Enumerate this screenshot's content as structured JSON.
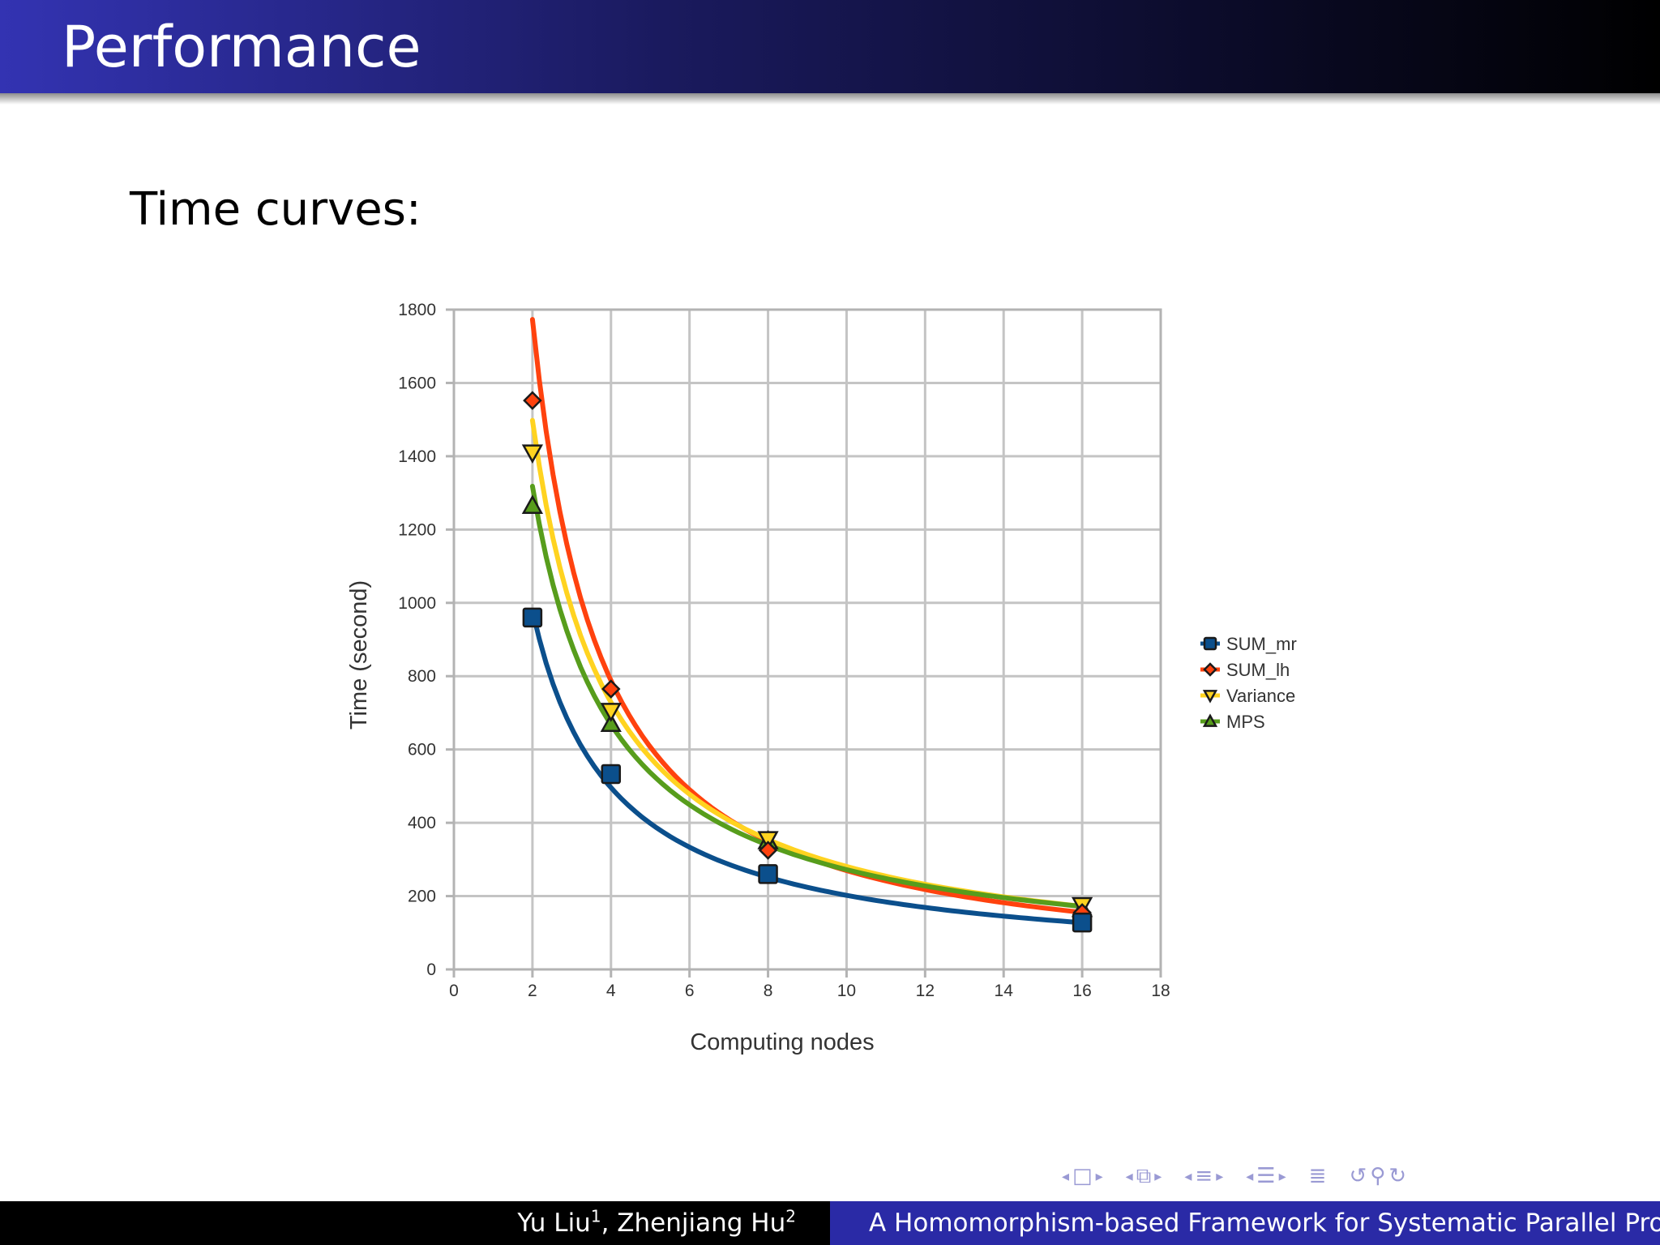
{
  "slide": {
    "title": "Performance",
    "subtitle": "Time curves:"
  },
  "footer": {
    "author1": "Yu Liu",
    "author1_sup": "1",
    "separator": ", ",
    "author2": "Zhenjiang Hu",
    "author2_sup": "2",
    "talk_title": "A Homomorphism-based Framework for Systematic Parallel Programming with MapReduce"
  },
  "navigation": {
    "icons": [
      "left-arrow-icon",
      "frame-icon",
      "right-arrow-icon",
      "left-arrow-icon",
      "subsection-icon",
      "right-arrow-icon",
      "left-arrow-icon",
      "section-icon",
      "right-arrow-icon",
      "left-arrow-icon",
      "document-icon",
      "right-arrow-icon",
      "align-icon",
      "back-icon",
      "zoom-icon",
      "forward-icon"
    ],
    "color": "#9a9ad4"
  },
  "colors": {
    "title_bar_start": "#3333b2",
    "title_bar_end": "#000000",
    "footer_left": "#000000",
    "footer_right": "#2a2aa6"
  },
  "chart_data": {
    "type": "scatter",
    "title": "",
    "xlabel": "Computing nodes",
    "ylabel": "Time (second)",
    "xlim": [
      0,
      18
    ],
    "ylim": [
      0,
      1800
    ],
    "xticks": [
      0,
      2,
      4,
      6,
      8,
      10,
      12,
      14,
      16,
      18
    ],
    "yticks": [
      0,
      200,
      400,
      600,
      800,
      1000,
      1200,
      1400,
      1600,
      1800
    ],
    "grid": true,
    "legend_position": "right",
    "x": [
      2,
      4,
      8,
      16
    ],
    "series": [
      {
        "name": "SUM_mr",
        "values": [
          960,
          533,
          260,
          128
        ],
        "color": "#0b4f8c",
        "marker": "square",
        "trend": "power"
      },
      {
        "name": "SUM_lh",
        "values": [
          1552,
          765,
          325,
          155
        ],
        "color": "#ff420e",
        "marker": "diamond",
        "trend": "power"
      },
      {
        "name": "Variance",
        "values": [
          1410,
          705,
          355,
          175
        ],
        "color": "#ffd320",
        "marker": "triangle-down",
        "trend": "power"
      },
      {
        "name": "MPS",
        "values": [
          1265,
          670,
          350,
          165
        ],
        "color": "#579d1c",
        "marker": "triangle-up",
        "trend": "power"
      }
    ],
    "trend_lines": [
      {
        "series": "SUM_mr",
        "a": 1930,
        "b": 0.98
      },
      {
        "series": "SUM_lh",
        "a": 3990,
        "b": 1.17
      },
      {
        "series": "Variance",
        "a": 3080,
        "b": 1.04
      },
      {
        "series": "MPS",
        "a": 2600,
        "b": 0.98
      }
    ]
  }
}
